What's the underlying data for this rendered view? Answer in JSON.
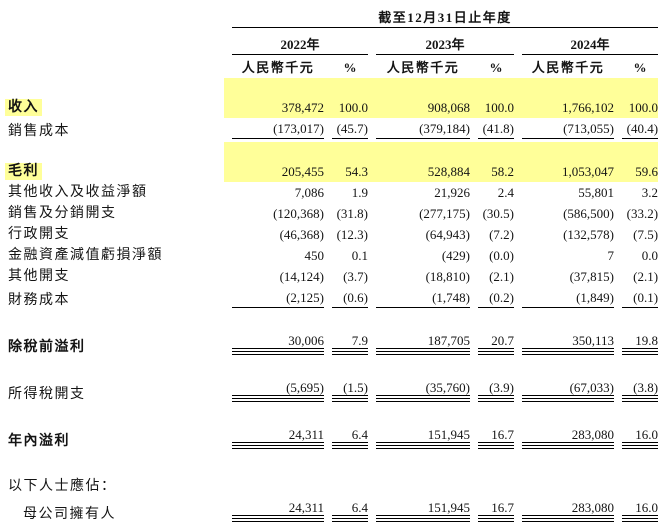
{
  "table": {
    "period_header": "截至12月31日止年度",
    "years": [
      "2022年",
      "2023年",
      "2024年"
    ],
    "col_headers": {
      "amount": "人民幣千元",
      "pct": "%"
    },
    "rows": [
      {
        "label": "收入",
        "bold": true,
        "highlight": true,
        "values": [
          "378,472",
          "100.0",
          "908,068",
          "100.0",
          "1,766,102",
          "100.0"
        ],
        "gap_before": true
      },
      {
        "label": "銷售成本",
        "rule": true,
        "values": [
          "(173,017)",
          "(45.7)",
          "(379,184)",
          "(41.8)",
          "(713,055)",
          "(40.4)"
        ]
      },
      {
        "label": "毛利",
        "bold": true,
        "highlight": true,
        "values": [
          "205,455",
          "54.3",
          "528,884",
          "58.2",
          "1,053,047",
          "59.6"
        ],
        "gap_before": true
      },
      {
        "label": "其他收入及收益淨額",
        "values": [
          "7,086",
          "1.9",
          "21,926",
          "2.4",
          "55,801",
          "3.2"
        ]
      },
      {
        "label": "銷售及分銷開支",
        "values": [
          "(120,368)",
          "(31.8)",
          "(277,175)",
          "(30.5)",
          "(586,500)",
          "(33.2)"
        ]
      },
      {
        "label": "行政開支",
        "values": [
          "(46,368)",
          "(12.3)",
          "(64,943)",
          "(7.2)",
          "(132,578)",
          "(7.5)"
        ]
      },
      {
        "label": "金融資產減值虧損淨額",
        "values": [
          "450",
          "0.1",
          "(429)",
          "(0.0)",
          "7",
          "0.0"
        ]
      },
      {
        "label": "其他開支",
        "values": [
          "(14,124)",
          "(3.7)",
          "(18,810)",
          "(2.1)",
          "(37,815)",
          "(2.1)"
        ]
      },
      {
        "label": "財務成本",
        "rule": true,
        "values": [
          "(2,125)",
          "(0.6)",
          "(1,748)",
          "(0.2)",
          "(1,849)",
          "(0.1)"
        ]
      },
      {
        "label": "除稅前溢利",
        "bold": true,
        "double_rule": true,
        "values": [
          "30,006",
          "7.9",
          "187,705",
          "20.7",
          "350,113",
          "19.8"
        ],
        "gap_before": true
      },
      {
        "label": "所得稅開支",
        "double_rule": true,
        "values": [
          "(5,695)",
          "(1.5)",
          "(35,760)",
          "(3.9)",
          "(67,033)",
          "(3.8)"
        ],
        "gap_before": true
      },
      {
        "label": "年內溢利",
        "bold": true,
        "double_rule": true,
        "values": [
          "24,311",
          "6.4",
          "151,945",
          "16.7",
          "283,080",
          "16.0"
        ],
        "gap_before": true
      },
      {
        "label": "以下人士應佔：",
        "values": [],
        "gap_before": true,
        "gap_large": true
      },
      {
        "label": "母公司擁有人",
        "indent": true,
        "double_rule": true,
        "values": [
          "24,311",
          "6.4",
          "151,945",
          "16.7",
          "283,080",
          "16.0"
        ]
      }
    ]
  },
  "colors": {
    "highlight": "#FFFF99",
    "rule": "#000000"
  }
}
